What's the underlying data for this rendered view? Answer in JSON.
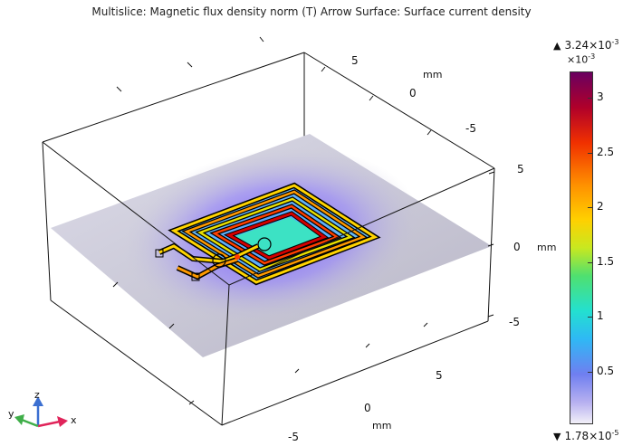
{
  "title": "Multislice: Magnetic flux density norm (T)  Arrow Surface: Surface current density",
  "box_ticks": {
    "top_near": "5",
    "top_mid": "0",
    "top_far": "-5",
    "top_unit": "mm",
    "right_5": "5",
    "right_0": "0",
    "right_m5": "-5",
    "right_unit": "mm",
    "bottom_5": "5",
    "bottom_0": "0",
    "bottom_m5": "-5",
    "bottom_unit": "mm"
  },
  "colorbar": {
    "max_label": "3.24×10",
    "max_exp": "-3",
    "min_label": "1.78×10",
    "min_exp": "-5",
    "multiplier": "×10",
    "multiplier_exp": "-3",
    "ticks": [
      "3",
      "2.5",
      "2",
      "1.5",
      "1",
      "0.5"
    ],
    "tick_values": [
      3,
      2.5,
      2,
      1.5,
      1,
      0.5
    ],
    "range": [
      0.0178,
      3.24
    ]
  },
  "triad": {
    "x": "x",
    "y": "y",
    "z": "z"
  },
  "colors": {
    "x_axis": "#e0245a",
    "y_axis": "#3fae49",
    "z_axis": "#3b6fd1",
    "plane": "#c7c5d6"
  }
}
